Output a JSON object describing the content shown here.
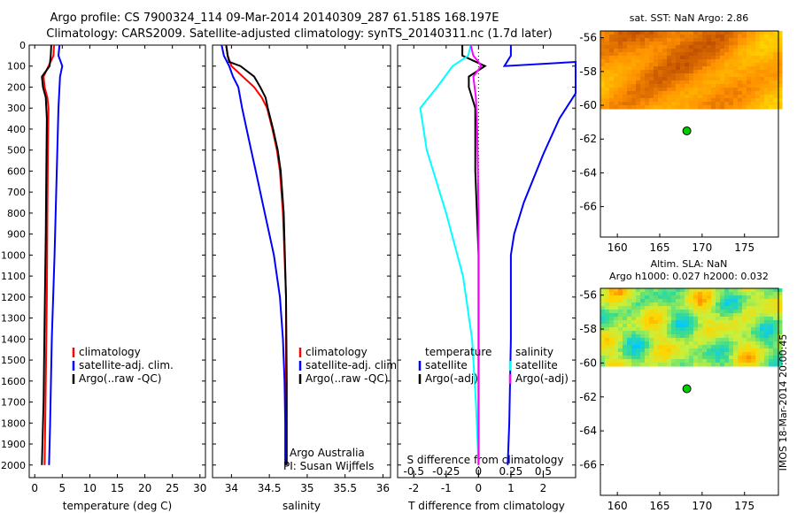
{
  "title": {
    "line1": "Argo profile: CS 7900324_114 09-Mar-2014 20140309_287 61.518S 168.197E",
    "line2": "Climatology: CARS2009. Satellite-adjusted climatology: synTS_20140311.nc (1.7d later)"
  },
  "footer": {
    "stamp": "IMOS 18-Mar-2014 20:00:45"
  },
  "chart_data": [
    {
      "id": "temperature",
      "type": "line",
      "xlabel": "temperature (deg C)",
      "xlim": [
        -1,
        31
      ],
      "xticks": [
        0,
        5,
        10,
        15,
        20,
        25,
        30
      ],
      "ylim": [
        0,
        2060
      ],
      "yticks": [
        0,
        100,
        200,
        300,
        400,
        500,
        600,
        700,
        800,
        900,
        1000,
        1100,
        1200,
        1300,
        1400,
        1500,
        1600,
        1700,
        1800,
        1900,
        2000
      ],
      "y_inverted": true,
      "legend": {
        "position": "lower-right",
        "items": [
          {
            "label": "climatology",
            "color": "#ff0000"
          },
          {
            "label": "satellite-adj. clim.",
            "color": "#0000ff"
          },
          {
            "label": "Argo(..raw -QC)",
            "color": "#000000"
          }
        ]
      },
      "series": [
        {
          "name": "climatology",
          "color": "#ff0000",
          "points": [
            [
              3.5,
              0
            ],
            [
              3.4,
              50
            ],
            [
              2.5,
              100
            ],
            [
              1.6,
              150
            ],
            [
              1.8,
              200
            ],
            [
              2.3,
              250
            ],
            [
              2.5,
              300
            ],
            [
              2.4,
              500
            ],
            [
              2.3,
              800
            ],
            [
              2.2,
              1200
            ],
            [
              2.0,
              1600
            ],
            [
              1.8,
              2000
            ]
          ]
        },
        {
          "name": "satellite-adj. clim.",
          "color": "#0000ff",
          "points": [
            [
              4.5,
              0
            ],
            [
              4.3,
              50
            ],
            [
              5.0,
              100
            ],
            [
              4.6,
              150
            ],
            [
              4.3,
              300
            ],
            [
              4.0,
              600
            ],
            [
              3.6,
              1000
            ],
            [
              3.1,
              1400
            ],
            [
              2.8,
              1800
            ],
            [
              2.6,
              2000
            ]
          ]
        },
        {
          "name": "Argo(..raw -QC)",
          "color": "#000000",
          "points": [
            [
              3.0,
              0
            ],
            [
              2.9,
              50
            ],
            [
              2.7,
              100
            ],
            [
              1.3,
              150
            ],
            [
              1.5,
              200
            ],
            [
              2.0,
              250
            ],
            [
              2.2,
              350
            ],
            [
              2.1,
              600
            ],
            [
              2.0,
              900
            ],
            [
              1.8,
              1300
            ],
            [
              1.6,
              1700
            ],
            [
              1.3,
              2000
            ]
          ]
        }
      ]
    },
    {
      "id": "salinity",
      "type": "line",
      "xlabel": "salinity",
      "xlim": [
        33.75,
        36.1
      ],
      "xticks": [
        34,
        34.5,
        35,
        35.5,
        36
      ],
      "ylim": [
        0,
        2060
      ],
      "y_inverted": true,
      "legend": {
        "position": "lower-right",
        "items": [
          {
            "label": "climatology",
            "color": "#ff0000"
          },
          {
            "label": "satellite-adj. clim.",
            "color": "#0000ff"
          },
          {
            "label": "Argo(..raw -QC)",
            "color": "#000000"
          }
        ]
      },
      "annotation": {
        "line1": "Argo Australia",
        "line2": "PI: Susan Wijffels"
      },
      "series": [
        {
          "name": "climatology",
          "color": "#ff0000",
          "points": [
            [
              33.93,
              0
            ],
            [
              33.95,
              50
            ],
            [
              34.0,
              100
            ],
            [
              34.15,
              150
            ],
            [
              34.3,
              200
            ],
            [
              34.4,
              250
            ],
            [
              34.47,
              300
            ],
            [
              34.54,
              400
            ],
            [
              34.6,
              500
            ],
            [
              34.64,
              600
            ],
            [
              34.68,
              800
            ],
            [
              34.72,
              1200
            ],
            [
              34.72,
              1800
            ],
            [
              34.72,
              2000
            ]
          ]
        },
        {
          "name": "satellite-adj. clim.",
          "color": "#0000ff",
          "points": [
            [
              33.87,
              0
            ],
            [
              33.9,
              50
            ],
            [
              33.97,
              100
            ],
            [
              34.02,
              150
            ],
            [
              34.09,
              200
            ],
            [
              34.14,
              300
            ],
            [
              34.2,
              400
            ],
            [
              34.26,
              500
            ],
            [
              34.32,
              600
            ],
            [
              34.44,
              800
            ],
            [
              34.56,
              1000
            ],
            [
              34.64,
              1200
            ],
            [
              34.68,
              1400
            ],
            [
              34.7,
              1600
            ],
            [
              34.71,
              1800
            ],
            [
              34.71,
              2000
            ]
          ]
        },
        {
          "name": "Argo(..raw -QC)",
          "color": "#000000",
          "points": [
            [
              33.93,
              0
            ],
            [
              33.95,
              50
            ],
            [
              33.97,
              80
            ],
            [
              34.12,
              100
            ],
            [
              34.3,
              150
            ],
            [
              34.38,
              200
            ],
            [
              34.45,
              250
            ],
            [
              34.48,
              300
            ],
            [
              34.55,
              400
            ],
            [
              34.61,
              500
            ],
            [
              34.65,
              600
            ],
            [
              34.69,
              800
            ],
            [
              34.72,
              1200
            ],
            [
              34.73,
              1600
            ],
            [
              34.73,
              2000
            ]
          ]
        }
      ]
    },
    {
      "id": "difference",
      "type": "line",
      "xlabel": "T difference from climatology",
      "xlim": [
        -2.5,
        3.0
      ],
      "xticks": [
        -2,
        -1,
        0,
        1,
        2
      ],
      "x2label": "S difference from climatology",
      "x2lim": [
        -0.625,
        0.75
      ],
      "x2ticks": [
        -0.5,
        -0.25,
        0,
        0.25,
        0.5
      ],
      "ylim": [
        0,
        2060
      ],
      "y_inverted": true,
      "legend": {
        "position": "lower-center",
        "col1": {
          "header": "temperature",
          "items": [
            {
              "label": "satellite",
              "color": "#0000ff"
            },
            {
              "label": "Argo(-adj)",
              "color": "#000000"
            }
          ]
        },
        "col2": {
          "header": "salinity",
          "items": [
            {
              "label": "satellite",
              "color": "#00ffff"
            },
            {
              "label": "Argo(-adj)",
              "color": "#ff00ff"
            }
          ]
        }
      },
      "series": [
        {
          "name": "T satellite",
          "color": "#0000ff",
          "axis": "T",
          "points": [
            [
              1.0,
              0
            ],
            [
              1.0,
              50
            ],
            [
              0.8,
              100
            ],
            [
              3.0,
              80
            ],
            [
              3.0,
              230
            ],
            [
              2.5,
              350
            ],
            [
              2.0,
              520
            ],
            [
              1.4,
              750
            ],
            [
              1.1,
              900
            ],
            [
              1.0,
              1000
            ],
            [
              1.0,
              1400
            ],
            [
              0.95,
              1800
            ],
            [
              0.9,
              2000
            ]
          ]
        },
        {
          "name": "T Argo(-adj)",
          "color": "#000000",
          "axis": "T",
          "points": [
            [
              -0.5,
              0
            ],
            [
              -0.5,
              50
            ],
            [
              0.2,
              100
            ],
            [
              -0.3,
              150
            ],
            [
              -0.3,
              200
            ],
            [
              -0.1,
              300
            ],
            [
              -0.1,
              600
            ],
            [
              0.0,
              1000
            ],
            [
              0.0,
              1600
            ],
            [
              0.0,
              2000
            ]
          ]
        },
        {
          "name": "S satellite",
          "color": "#00ffff",
          "axis": "S",
          "points": [
            [
              -0.06,
              0
            ],
            [
              -0.08,
              50
            ],
            [
              -0.2,
              100
            ],
            [
              -0.32,
              200
            ],
            [
              -0.45,
              300
            ],
            [
              -0.4,
              500
            ],
            [
              -0.25,
              800
            ],
            [
              -0.12,
              1100
            ],
            [
              -0.05,
              1400
            ],
            [
              -0.02,
              1700
            ],
            [
              0.0,
              2000
            ]
          ]
        },
        {
          "name": "S Argo(-adj)",
          "color": "#ff00ff",
          "axis": "S",
          "points": [
            [
              -0.06,
              0
            ],
            [
              -0.04,
              50
            ],
            [
              0.0,
              80
            ],
            [
              0.02,
              100
            ],
            [
              -0.04,
              150
            ],
            [
              -0.02,
              250
            ],
            [
              -0.01,
              400
            ],
            [
              0.0,
              800
            ],
            [
              0.0,
              1400
            ],
            [
              0.0,
              2000
            ]
          ]
        }
      ]
    },
    {
      "id": "sst_map",
      "type": "heatmap",
      "title": "sat. SST: NaN Argo: 2.86",
      "xlim": [
        158,
        179
      ],
      "xticks": [
        160,
        165,
        170,
        175
      ],
      "ylim": [
        -67.8,
        -55.6
      ],
      "yticks": [
        -56,
        -58,
        -60,
        -62,
        -64,
        -66
      ],
      "data_extent": {
        "lat_top": -55.6,
        "lat_bottom": -60.1
      },
      "palette": [
        "#ffd400",
        "#ff9000",
        "#b04000"
      ],
      "marker": {
        "lon": 168.197,
        "lat": -61.518,
        "color": "#00cc00"
      }
    },
    {
      "id": "sla_map",
      "type": "heatmap",
      "title": "Altim. SLA: NaN",
      "subtitle": "Argo h1000: 0.027 h2000: 0.032",
      "xlim": [
        158,
        179
      ],
      "xticks": [
        160,
        165,
        170,
        175
      ],
      "ylim": [
        -67.8,
        -55.6
      ],
      "yticks": [
        -56,
        -58,
        -60,
        -62,
        -64,
        -66
      ],
      "data_extent": {
        "lat_top": -55.6,
        "lat_bottom": -60.1
      },
      "palette": [
        "#00c8ff",
        "#3cdc8c",
        "#c8f03c",
        "#ffd400",
        "#ff6000"
      ],
      "marker": {
        "lon": 168.197,
        "lat": -61.518,
        "color": "#00cc00"
      }
    }
  ]
}
